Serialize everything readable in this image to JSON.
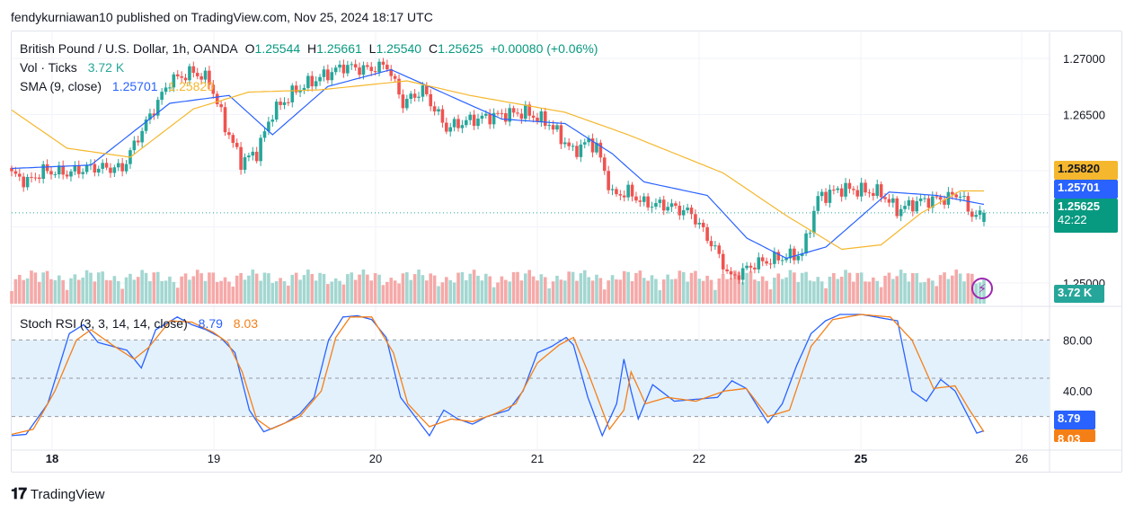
{
  "header": {
    "published_by": "fendykurniawan10 published on TradingView.com, Nov 25, 2024 18:17 UTC"
  },
  "legend": {
    "symbol": "British Pound / U.S. Dollar, 1h, OANDA",
    "o_label": "O",
    "o_value": "1.25544",
    "h_label": "H",
    "h_value": "1.25661",
    "l_label": "L",
    "l_value": "1.25540",
    "c_label": "C",
    "c_value": "1.25625",
    "change": "+0.00080 (+0.06%)",
    "vol_label": "Vol · Ticks",
    "vol_value": "3.72 K",
    "sma_label": "SMA (9, close)",
    "sma_value1": "1.25701",
    "sma_value2": "1.25820",
    "stoch_label": "Stoch RSI (3, 3, 14, 14, close)",
    "stoch_k": "8.79",
    "stoch_d": "8.03"
  },
  "price_axis": {
    "ticks": [
      "1.27000",
      "1.26500",
      "1.25000"
    ],
    "labels": {
      "sma_slow": "1.25820",
      "sma_fast": "1.25701",
      "last_price": "1.25625",
      "countdown": "42:22",
      "volume": "3.72 K"
    }
  },
  "stoch_axis": {
    "ticks": [
      "80.00",
      "40.00"
    ],
    "labels": {
      "k": "8.79",
      "d": "8.03"
    }
  },
  "time_axis": [
    "18",
    "19",
    "20",
    "21",
    "22",
    "25",
    "26"
  ],
  "colors": {
    "up": "#26a69a",
    "down": "#ef5350",
    "up_vol": "#a3d7d1",
    "down_vol": "#f5a9a8",
    "sma_fast": "#2962ff",
    "sma_slow": "#f5b72d",
    "stoch_k": "#2962ff",
    "stoch_d": "#f57f17",
    "stoch_band": "#e3f1fd"
  },
  "footer": {
    "brand": "TradingView"
  },
  "chart_data": [
    {
      "type": "candlestick",
      "title": "British Pound / U.S. Dollar, 1h, OANDA",
      "ylim": [
        1.248,
        1.272
      ],
      "x_labels": [
        "18",
        "19",
        "20",
        "21",
        "22",
        "25",
        "26"
      ],
      "close_keypoints": [
        [
          0,
          1.2597
        ],
        [
          4,
          1.259
        ],
        [
          8,
          1.26
        ],
        [
          14,
          1.2598
        ],
        [
          20,
          1.2603
        ],
        [
          28,
          1.2602
        ],
        [
          32,
          1.263
        ],
        [
          40,
          1.268
        ],
        [
          46,
          1.2688
        ],
        [
          50,
          1.268
        ],
        [
          54,
          1.264
        ],
        [
          58,
          1.2608
        ],
        [
          62,
          1.2616
        ],
        [
          66,
          1.2652
        ],
        [
          72,
          1.2672
        ],
        [
          78,
          1.2683
        ],
        [
          84,
          1.2693
        ],
        [
          90,
          1.269
        ],
        [
          95,
          1.2694
        ],
        [
          99,
          1.266
        ],
        [
          104,
          1.2672
        ],
        [
          110,
          1.2638
        ],
        [
          116,
          1.2645
        ],
        [
          124,
          1.265
        ],
        [
          130,
          1.2652
        ],
        [
          136,
          1.2642
        ],
        [
          142,
          1.2617
        ],
        [
          146,
          1.2626
        ],
        [
          148,
          1.2621
        ],
        [
          152,
          1.2578
        ],
        [
          156,
          1.2581
        ],
        [
          160,
          1.2571
        ],
        [
          166,
          1.2569
        ],
        [
          172,
          1.2562
        ],
        [
          178,
          1.253
        ],
        [
          182,
          1.2504
        ],
        [
          188,
          1.2517
        ],
        [
          194,
          1.2522
        ],
        [
          200,
          1.2526
        ],
        [
          204,
          1.2576
        ],
        [
          210,
          1.2584
        ],
        [
          216,
          1.2582
        ],
        [
          220,
          1.258
        ],
        [
          224,
          1.2565
        ],
        [
          230,
          1.2573
        ],
        [
          236,
          1.2575
        ],
        [
          240,
          1.258
        ],
        [
          242,
          1.2564
        ],
        [
          246,
          1.2558
        ]
      ]
    },
    {
      "type": "line",
      "name": "SMA (9, close)",
      "series": [
        {
          "name": "",
          "last_value": 1.25701,
          "keypoints": [
            [
              0,
              1.2602
            ],
            [
              20,
              1.2605
            ],
            [
              40,
              1.266
            ],
            [
              55,
              1.2667
            ],
            [
              66,
              1.2632
            ],
            [
              80,
              1.2675
            ],
            [
              96,
              1.269
            ],
            [
              110,
              1.2668
            ],
            [
              124,
              1.2646
            ],
            [
              140,
              1.2642
            ],
            [
              152,
              1.2615
            ],
            [
              160,
              1.259
            ],
            [
              176,
              1.2578
            ],
            [
              186,
              1.254
            ],
            [
              196,
              1.2522
            ],
            [
              206,
              1.2532
            ],
            [
              222,
              1.2581
            ],
            [
              234,
              1.2578
            ],
            [
              246,
              1.257
            ]
          ]
        },
        {
          "name": "",
          "last_value": 1.2582,
          "keypoints": [
            [
              0,
              1.2654
            ],
            [
              14,
              1.262
            ],
            [
              30,
              1.2612
            ],
            [
              46,
              1.2655
            ],
            [
              60,
              1.267
            ],
            [
              78,
              1.2672
            ],
            [
              100,
              1.268
            ],
            [
              116,
              1.2667
            ],
            [
              140,
              1.2652
            ],
            [
              156,
              1.2632
            ],
            [
              180,
              1.2598
            ],
            [
              196,
              1.256
            ],
            [
              210,
              1.253
            ],
            [
              220,
              1.2534
            ],
            [
              230,
              1.2562
            ],
            [
              240,
              1.2582
            ],
            [
              246,
              1.2582
            ]
          ]
        }
      ]
    },
    {
      "type": "bar",
      "name": "Vol · Ticks",
      "last_value": "3.72 K"
    },
    {
      "type": "line",
      "name": "Stoch RSI (3, 3, 14, 14, close)",
      "ylim": [
        0,
        100
      ],
      "y_ticks": [
        80,
        40
      ],
      "bands": [
        80,
        20
      ],
      "series": [
        {
          "name": "",
          "last_value": 8.79,
          "keypoints": [
            [
              0,
              5
            ],
            [
              4,
              6
            ],
            [
              10,
              30
            ],
            [
              16,
              85
            ],
            [
              20,
              92
            ],
            [
              24,
              78
            ],
            [
              32,
              72
            ],
            [
              36,
              58
            ],
            [
              40,
              88
            ],
            [
              46,
              98
            ],
            [
              50,
              92
            ],
            [
              54,
              88
            ],
            [
              58,
              82
            ],
            [
              62,
              70
            ],
            [
              66,
              25
            ],
            [
              70,
              8
            ],
            [
              76,
              15
            ],
            [
              80,
              22
            ],
            [
              84,
              35
            ],
            [
              88,
              80
            ],
            [
              92,
              98
            ],
            [
              96,
              99
            ],
            [
              100,
              96
            ],
            [
              104,
              82
            ],
            [
              108,
              35
            ],
            [
              112,
              20
            ],
            [
              116,
              5
            ],
            [
              120,
              25
            ],
            [
              124,
              18
            ],
            [
              128,
              14
            ],
            [
              132,
              20
            ],
            [
              138,
              25
            ],
            [
              142,
              40
            ],
            [
              146,
              70
            ],
            [
              150,
              75
            ],
            [
              154,
              82
            ],
            [
              156,
              76
            ],
            [
              160,
              35
            ],
            [
              164,
              5
            ],
            [
              168,
              30
            ],
            [
              170,
              65
            ],
            [
              172,
              40
            ],
            [
              174,
              18
            ],
            [
              178,
              45
            ],
            [
              184,
              32
            ],
            [
              188,
              33
            ],
            [
              196,
              35
            ],
            [
              200,
              48
            ],
            [
              204,
              42
            ],
            [
              210,
              15
            ],
            [
              214,
              30
            ],
            [
              218,
              60
            ],
            [
              222,
              85
            ],
            [
              226,
              95
            ],
            [
              230,
              100
            ],
            [
              236,
              100
            ],
            [
              240,
              98
            ],
            [
              246,
              95
            ],
            [
              250,
              40
            ],
            [
              254,
              32
            ],
            [
              258,
              49
            ],
            [
              262,
              40
            ],
            [
              266,
              18
            ],
            [
              268,
              7
            ],
            [
              270,
              8.79
            ]
          ]
        },
        {
          "name": "",
          "last_value": 8.03,
          "keypoints": [
            [
              0,
              6
            ],
            [
              6,
              10
            ],
            [
              12,
              40
            ],
            [
              18,
              80
            ],
            [
              22,
              88
            ],
            [
              28,
              76
            ],
            [
              34,
              65
            ],
            [
              38,
              74
            ],
            [
              44,
              95
            ],
            [
              50,
              94
            ],
            [
              56,
              86
            ],
            [
              60,
              78
            ],
            [
              64,
              55
            ],
            [
              68,
              18
            ],
            [
              72,
              10
            ],
            [
              80,
              20
            ],
            [
              86,
              40
            ],
            [
              90,
              82
            ],
            [
              94,
              98
            ],
            [
              100,
              98
            ],
            [
              106,
              70
            ],
            [
              110,
              30
            ],
            [
              116,
              12
            ],
            [
              122,
              18
            ],
            [
              128,
              16
            ],
            [
              134,
              22
            ],
            [
              140,
              30
            ],
            [
              146,
              62
            ],
            [
              152,
              76
            ],
            [
              156,
              82
            ],
            [
              160,
              55
            ],
            [
              166,
              10
            ],
            [
              170,
              25
            ],
            [
              172,
              55
            ],
            [
              176,
              30
            ],
            [
              182,
              35
            ],
            [
              190,
              32
            ],
            [
              198,
              40
            ],
            [
              204,
              42
            ],
            [
              210,
              20
            ],
            [
              216,
              25
            ],
            [
              222,
              75
            ],
            [
              228,
              96
            ],
            [
              236,
              100
            ],
            [
              244,
              98
            ],
            [
              250,
              80
            ],
            [
              256,
              42
            ],
            [
              262,
              44
            ],
            [
              266,
              25
            ],
            [
              270,
              8.03
            ]
          ]
        }
      ]
    }
  ]
}
